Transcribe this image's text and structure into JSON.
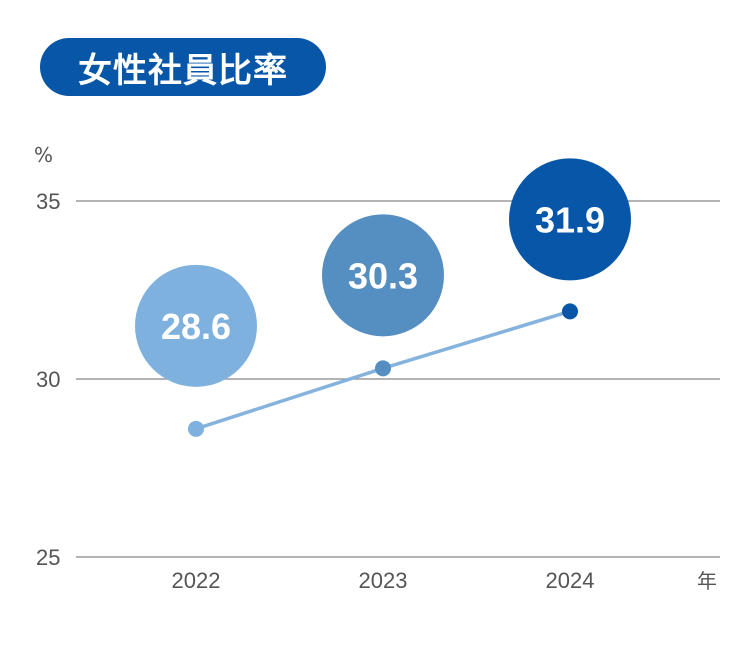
{
  "title": "女性社員比率",
  "colors": {
    "title_bg": "#0756a8",
    "grid": "#9a9a9a",
    "line": "#85b3de",
    "bubbles": [
      "#7fb1df",
      "#558fc2",
      "#0756a8"
    ],
    "points": [
      "#7fb1df",
      "#558fc2",
      "#0756a8"
    ]
  },
  "chart_data": {
    "type": "line",
    "title": "女性社員比率",
    "categories": [
      "2022",
      "2023",
      "2024"
    ],
    "series": [
      {
        "values": [
          28.6,
          30.3,
          31.9
        ]
      }
    ],
    "data_labels": [
      "28.6",
      "30.3",
      "31.9"
    ],
    "ylim": [
      25,
      35
    ],
    "yticks": [
      "25",
      "30",
      "35"
    ],
    "y_unit": "%",
    "x_unit": "年",
    "grid": true
  }
}
